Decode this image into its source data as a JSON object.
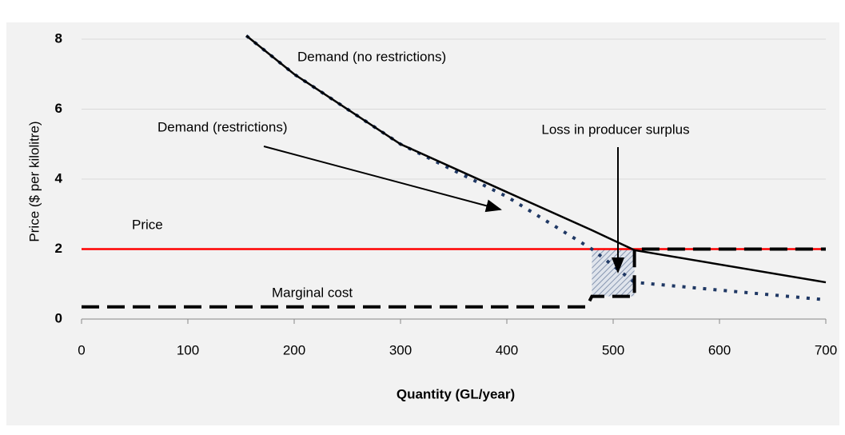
{
  "chart_data": {
    "type": "line",
    "xlabel": "Quantity (GL/year)",
    "ylabel": "Price ($ per kilolitre)",
    "xlim": [
      0,
      700
    ],
    "xticks": [
      0,
      100,
      200,
      300,
      400,
      500,
      600,
      700
    ],
    "ylim": [
      0,
      8
    ],
    "yticks": [
      0,
      2,
      4,
      6,
      8
    ],
    "grid": true,
    "series": [
      {
        "name": "Price",
        "color": "#ff0000",
        "style": "solid",
        "x": [
          0,
          700
        ],
        "values": [
          2,
          2
        ]
      },
      {
        "name": "Demand (restrictions)",
        "color": "#1f3864",
        "style": "dotted",
        "x": [
          155,
          200,
          300,
          400,
          480,
          520,
          700
        ],
        "values": [
          8.1,
          7,
          5,
          3.5,
          2,
          1.05,
          0.55
        ]
      },
      {
        "name": "Marginal cost",
        "color": "#000000",
        "style": "dashed",
        "x": [
          0,
          475,
          480,
          520,
          520,
          700
        ],
        "values": [
          0.35,
          0.35,
          0.65,
          0.65,
          2,
          2
        ]
      },
      {
        "name": "Demand (no restrictions)",
        "color": "#000000",
        "style": "solid",
        "x": [
          155,
          200,
          300,
          400,
          480,
          520,
          700
        ],
        "values": [
          8.1,
          7,
          5,
          3.63,
          2.54,
          1.97,
          1.05
        ]
      }
    ],
    "shaded_region": {
      "label": "Loss in producer surplus",
      "x": [
        480,
        520
      ],
      "y": [
        0.65,
        2
      ]
    }
  }
}
